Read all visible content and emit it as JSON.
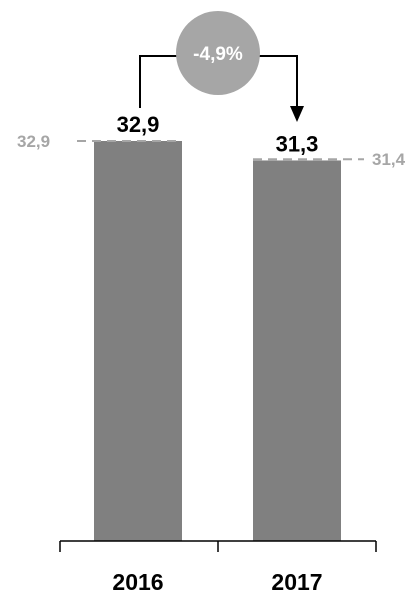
{
  "chart_data": {
    "type": "bar",
    "categories": [
      "2016",
      "2017"
    ],
    "values": [
      32.9,
      31.3
    ],
    "value_labels": [
      "32,9",
      "31,3"
    ],
    "reference_lines": [
      {
        "value": 32.9,
        "label": "32,9",
        "side": "left"
      },
      {
        "value": 31.4,
        "label": "31,4",
        "side": "right"
      }
    ],
    "change_label": "-4,9%",
    "ylim": [
      0,
      32.9
    ],
    "grid": false,
    "colors": {
      "bar": "#808080",
      "bubble": "#a6a6a6",
      "reference": "#a6a6a6",
      "text": "#000000",
      "bubble_text": "#ffffff"
    }
  }
}
